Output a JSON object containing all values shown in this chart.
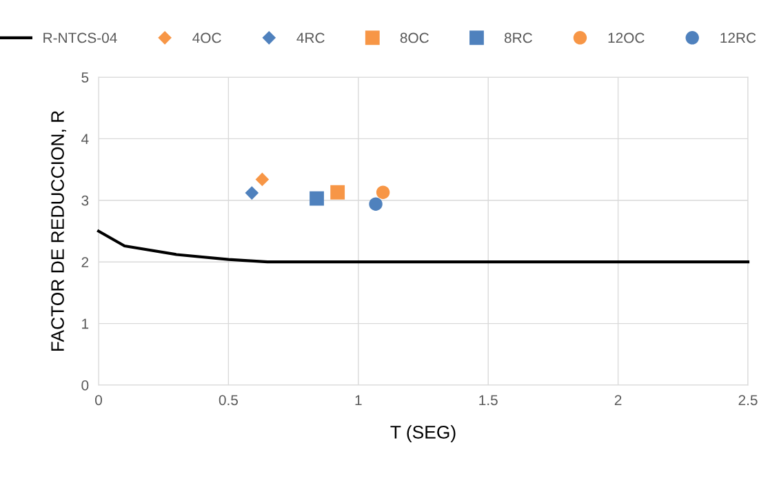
{
  "chart_data": {
    "type": "scatter",
    "xlabel": "T (SEG)",
    "ylabel": "FACTOR DE REDUCCION, R",
    "xlim": [
      0,
      2.5
    ],
    "xticks": [
      0,
      0.5,
      1,
      1.5,
      2,
      2.5
    ],
    "ylim": [
      0,
      5
    ],
    "yticks": [
      0,
      1,
      2,
      3,
      4,
      5
    ],
    "grid": true,
    "legend": "top",
    "series": [
      {
        "name": "R-NTCS-04",
        "type": "line",
        "color": "#000000",
        "marker": "none",
        "line_style": "solid",
        "x": [
          0,
          0.1,
          0.3,
          0.5,
          0.65,
          2.5
        ],
        "values": [
          2.5,
          2.26,
          2.12,
          2.04,
          2.0,
          2.0
        ]
      },
      {
        "name": "4OC",
        "color": "#f79646",
        "marker": "diamond",
        "x": [
          0.63
        ],
        "values": [
          3.34
        ]
      },
      {
        "name": "4RC",
        "color": "#4f81bd",
        "marker": "diamond",
        "x": [
          0.59
        ],
        "values": [
          3.12
        ]
      },
      {
        "name": "8OC",
        "color": "#f79646",
        "marker": "square",
        "x": [
          0.92
        ],
        "values": [
          3.13
        ]
      },
      {
        "name": "8RC",
        "color": "#4f81bd",
        "marker": "square",
        "x": [
          0.84
        ],
        "values": [
          3.03
        ]
      },
      {
        "name": "12OC",
        "color": "#f79646",
        "marker": "circle",
        "x": [
          1.095
        ],
        "values": [
          3.13
        ]
      },
      {
        "name": "12RC",
        "color": "#4f81bd",
        "marker": "circle",
        "x": [
          1.067
        ],
        "values": [
          2.94
        ]
      }
    ]
  }
}
